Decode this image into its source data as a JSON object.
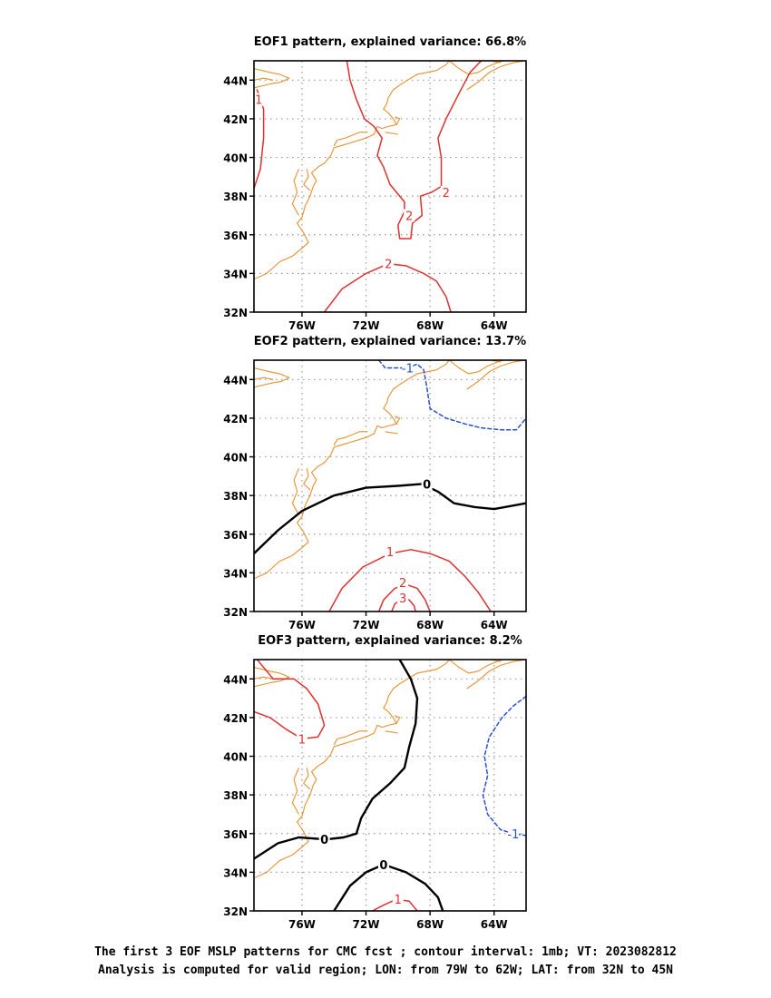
{
  "chart_data": [
    {
      "type": "contour-map",
      "title": "EOF1 pattern, explained variance: 66.8%",
      "x_ticks": [
        "76W",
        "72W",
        "68W",
        "64W"
      ],
      "x_tick_values": [
        -76,
        -72,
        -68,
        -64
      ],
      "y_ticks": [
        "32N",
        "34N",
        "36N",
        "38N",
        "40N",
        "42N",
        "44N"
      ],
      "y_tick_values": [
        32,
        34,
        36,
        38,
        40,
        42,
        44
      ],
      "xlim": [
        -79,
        -62
      ],
      "ylim": [
        32,
        45
      ],
      "grid": true,
      "contours": [
        {
          "level": 1,
          "color": "#e03030",
          "dashed": false,
          "bold": false,
          "points": [
            [
              -79,
              38.4
            ],
            [
              -78.6,
              39.4
            ],
            [
              -78.4,
              41
            ],
            [
              -78.4,
              42.5
            ],
            [
              -78.8,
              43.5
            ]
          ],
          "labels": [
            {
              "text": "1",
              "at": [
                -78.7,
                43.0
              ]
            }
          ]
        },
        {
          "level": 2,
          "color": "#e03030",
          "dashed": false,
          "bold": false,
          "points": [
            [
              -73.2,
              45
            ],
            [
              -73.0,
              44
            ],
            [
              -72.6,
              43
            ],
            [
              -72.1,
              42.0
            ],
            [
              -71.5,
              41.6
            ],
            [
              -71.0,
              41.0
            ],
            [
              -71.3,
              40.1
            ],
            [
              -70.9,
              39.5
            ],
            [
              -70.5,
              38.6
            ],
            [
              -69.6,
              37.7
            ],
            [
              -69.6,
              37.2
            ],
            [
              -70.0,
              36.5
            ],
            [
              -69.9,
              35.8
            ],
            [
              -69.2,
              35.8
            ],
            [
              -69.1,
              36.6
            ],
            [
              -68.5,
              37.0
            ],
            [
              -68.6,
              38.0
            ],
            [
              -67.9,
              38.2
            ],
            [
              -67.3,
              38.5
            ],
            [
              -67.3,
              40.0
            ],
            [
              -67.5,
              41.0
            ],
            [
              -67.0,
              42.0
            ],
            [
              -66.2,
              43.3
            ],
            [
              -65.5,
              44.4
            ],
            [
              -64.8,
              45.0
            ]
          ],
          "labels": [
            {
              "text": "2",
              "at": [
                -69.3,
                37.0
              ]
            },
            {
              "text": "2",
              "at": [
                -67.0,
                38.2
              ]
            }
          ]
        },
        {
          "level": 2,
          "color": "#e03030",
          "dashed": false,
          "bold": false,
          "points": [
            [
              -74.6,
              32
            ],
            [
              -73.5,
              33.2
            ],
            [
              -72.0,
              34.0
            ],
            [
              -70.6,
              34.5
            ],
            [
              -69.5,
              34.4
            ],
            [
              -68.4,
              34.0
            ],
            [
              -67.6,
              33.6
            ],
            [
              -67.0,
              32.8
            ],
            [
              -66.7,
              32
            ]
          ],
          "labels": [
            {
              "text": "2",
              "at": [
                -70.6,
                34.5
              ]
            }
          ]
        }
      ]
    },
    {
      "type": "contour-map",
      "title": "EOF2 pattern, explained variance: 13.7%",
      "x_ticks": [
        "76W",
        "72W",
        "68W",
        "64W"
      ],
      "x_tick_values": [
        -76,
        -72,
        -68,
        -64
      ],
      "y_ticks": [
        "32N",
        "34N",
        "36N",
        "38N",
        "40N",
        "42N",
        "44N"
      ],
      "y_tick_values": [
        32,
        34,
        36,
        38,
        40,
        42,
        44
      ],
      "xlim": [
        -79,
        -62
      ],
      "ylim": [
        32,
        45
      ],
      "grid": true,
      "contours": [
        {
          "level": -1,
          "color": "#2a4fd6",
          "dashed": true,
          "bold": false,
          "points": [
            [
              -71.2,
              45
            ],
            [
              -70.8,
              44.6
            ],
            [
              -70.2,
              44.6
            ],
            [
              -69.4,
              44.6
            ],
            [
              -68.8,
              44.8
            ],
            [
              -68.4,
              44.5
            ],
            [
              -68.2,
              43.6
            ],
            [
              -68.0,
              42.5
            ],
            [
              -67.0,
              42.0
            ],
            [
              -65.8,
              41.7
            ],
            [
              -64.8,
              41.5
            ],
            [
              -63.6,
              41.4
            ],
            [
              -62.6,
              41.4
            ],
            [
              -62,
              42.0
            ]
          ],
          "labels": [
            {
              "text": "-1",
              "at": [
                -69.4,
                44.6
              ]
            }
          ]
        },
        {
          "level": 0,
          "color": "#000000",
          "dashed": false,
          "bold": true,
          "points": [
            [
              -79,
              35.0
            ],
            [
              -77.5,
              36.2
            ],
            [
              -76.0,
              37.2
            ],
            [
              -74.0,
              38.0
            ],
            [
              -72.0,
              38.4
            ],
            [
              -70.0,
              38.5
            ],
            [
              -68.5,
              38.6
            ],
            [
              -67.5,
              38.2
            ],
            [
              -66.5,
              37.6
            ],
            [
              -65.2,
              37.4
            ],
            [
              -64.0,
              37.3
            ],
            [
              -62,
              37.6
            ]
          ],
          "labels": [
            {
              "text": "0",
              "at": [
                -68.2,
                38.6
              ]
            }
          ]
        },
        {
          "level": 1,
          "color": "#e03030",
          "dashed": false,
          "bold": false,
          "points": [
            [
              -74.3,
              32
            ],
            [
              -73.5,
              33.2
            ],
            [
              -72.2,
              34.3
            ],
            [
              -70.5,
              35.0
            ],
            [
              -69.2,
              35.2
            ],
            [
              -68.0,
              35.0
            ],
            [
              -66.8,
              34.6
            ],
            [
              -65.8,
              33.8
            ],
            [
              -65.0,
              33.0
            ],
            [
              -64.2,
              32
            ]
          ],
          "labels": [
            {
              "text": "1",
              "at": [
                -70.5,
                35.1
              ]
            }
          ]
        },
        {
          "level": 2,
          "color": "#e03030",
          "dashed": false,
          "bold": false,
          "points": [
            [
              -71.2,
              32
            ],
            [
              -70.9,
              32.6
            ],
            [
              -70.2,
              33.2
            ],
            [
              -69.5,
              33.4
            ],
            [
              -68.8,
              33.2
            ],
            [
              -68.3,
              32.6
            ],
            [
              -68.0,
              32
            ]
          ],
          "labels": [
            {
              "text": "2",
              "at": [
                -69.7,
                33.5
              ]
            }
          ]
        },
        {
          "level": 3,
          "color": "#e03030",
          "dashed": false,
          "bold": false,
          "points": [
            [
              -70.4,
              32
            ],
            [
              -70.2,
              32.4
            ],
            [
              -69.8,
              32.6
            ],
            [
              -69.3,
              32.6
            ],
            [
              -69.0,
              32.3
            ],
            [
              -68.9,
              32
            ]
          ],
          "labels": [
            {
              "text": "3",
              "at": [
                -69.7,
                32.7
              ]
            }
          ]
        }
      ]
    },
    {
      "type": "contour-map",
      "title": "EOF3 pattern, explained variance: 8.2%",
      "x_ticks": [
        "76W",
        "72W",
        "68W",
        "64W"
      ],
      "x_tick_values": [
        -76,
        -72,
        -68,
        -64
      ],
      "y_ticks": [
        "32N",
        "34N",
        "36N",
        "38N",
        "40N",
        "42N",
        "44N"
      ],
      "y_tick_values": [
        32,
        34,
        36,
        38,
        40,
        42,
        44
      ],
      "xlim": [
        -79,
        -62
      ],
      "ylim": [
        32,
        45
      ],
      "grid": true,
      "contours": [
        {
          "level": 1,
          "color": "#e03030",
          "dashed": false,
          "bold": false,
          "points": [
            [
              -78.8,
              45
            ],
            [
              -77.8,
              44.0
            ],
            [
              -76.5,
              44.0
            ],
            [
              -75.7,
              43.5
            ],
            [
              -75.0,
              42.7
            ],
            [
              -74.6,
              41.6
            ],
            [
              -75.0,
              41.0
            ],
            [
              -76.0,
              40.9
            ],
            [
              -77.0,
              41.4
            ],
            [
              -78.0,
              42.0
            ],
            [
              -79,
              42.3
            ]
          ],
          "labels": [
            {
              "text": "1",
              "at": [
                -76.0,
                40.9
              ]
            }
          ]
        },
        {
          "level": 0,
          "color": "#000000",
          "dashed": false,
          "bold": true,
          "points": [
            [
              -69.9,
              45
            ],
            [
              -69.2,
              44.0
            ],
            [
              -68.8,
              43.0
            ],
            [
              -68.9,
              41.7
            ],
            [
              -69.3,
              40.5
            ],
            [
              -69.6,
              39.4
            ],
            [
              -70.5,
              38.6
            ],
            [
              -71.6,
              37.8
            ],
            [
              -72.3,
              36.8
            ],
            [
              -72.6,
              36.0
            ],
            [
              -73.4,
              35.8
            ],
            [
              -74.5,
              35.7
            ],
            [
              -76.2,
              35.8
            ],
            [
              -77.5,
              35.5
            ],
            [
              -79,
              34.7
            ]
          ],
          "labels": [
            {
              "text": "0",
              "at": [
                -74.6,
                35.7
              ]
            }
          ]
        },
        {
          "level": 0,
          "color": "#000000",
          "dashed": false,
          "bold": true,
          "points": [
            [
              -74.0,
              32
            ],
            [
              -73.0,
              33.3
            ],
            [
              -72.0,
              34.0
            ],
            [
              -70.9,
              34.4
            ],
            [
              -69.5,
              34.0
            ],
            [
              -68.3,
              33.4
            ],
            [
              -67.5,
              32.7
            ],
            [
              -67.2,
              32
            ]
          ],
          "labels": [
            {
              "text": "0",
              "at": [
                -70.9,
                34.4
              ]
            }
          ]
        },
        {
          "level": 1,
          "color": "#e03030",
          "dashed": false,
          "bold": false,
          "points": [
            [
              -71.6,
              32
            ],
            [
              -70.9,
              32.3
            ],
            [
              -70.1,
              32.6
            ],
            [
              -69.3,
              32.5
            ],
            [
              -68.8,
              32
            ]
          ],
          "labels": [
            {
              "text": "1",
              "at": [
                -70.0,
                32.6
              ]
            }
          ]
        },
        {
          "level": -1,
          "color": "#2a4fd6",
          "dashed": true,
          "bold": false,
          "points": [
            [
              -62,
              43.1
            ],
            [
              -62.8,
              42.6
            ],
            [
              -63.5,
              42.0
            ],
            [
              -64.3,
              41.0
            ],
            [
              -64.6,
              40.0
            ],
            [
              -64.4,
              39.0
            ],
            [
              -64.7,
              38.0
            ],
            [
              -64.4,
              37.0
            ],
            [
              -63.6,
              36.2
            ],
            [
              -62.8,
              36.0
            ],
            [
              -62,
              35.9
            ]
          ],
          "labels": [
            {
              "text": "-1",
              "at": [
                -62.8,
                36.0
              ]
            }
          ]
        }
      ]
    }
  ],
  "footer": {
    "line1": "The first 3 EOF MSLP patterns for CMC fcst ; contour interval: 1mb; VT: 2023082812",
    "line2": "Analysis is computed for valid region; LON: from 79W to 62W; LAT: from 32N to 45N"
  },
  "colors": {
    "coast": "#e8902e",
    "positive": "#e03030",
    "negative": "#2a4fd6",
    "zero": "#000000",
    "grid": "#9a9a9a"
  }
}
